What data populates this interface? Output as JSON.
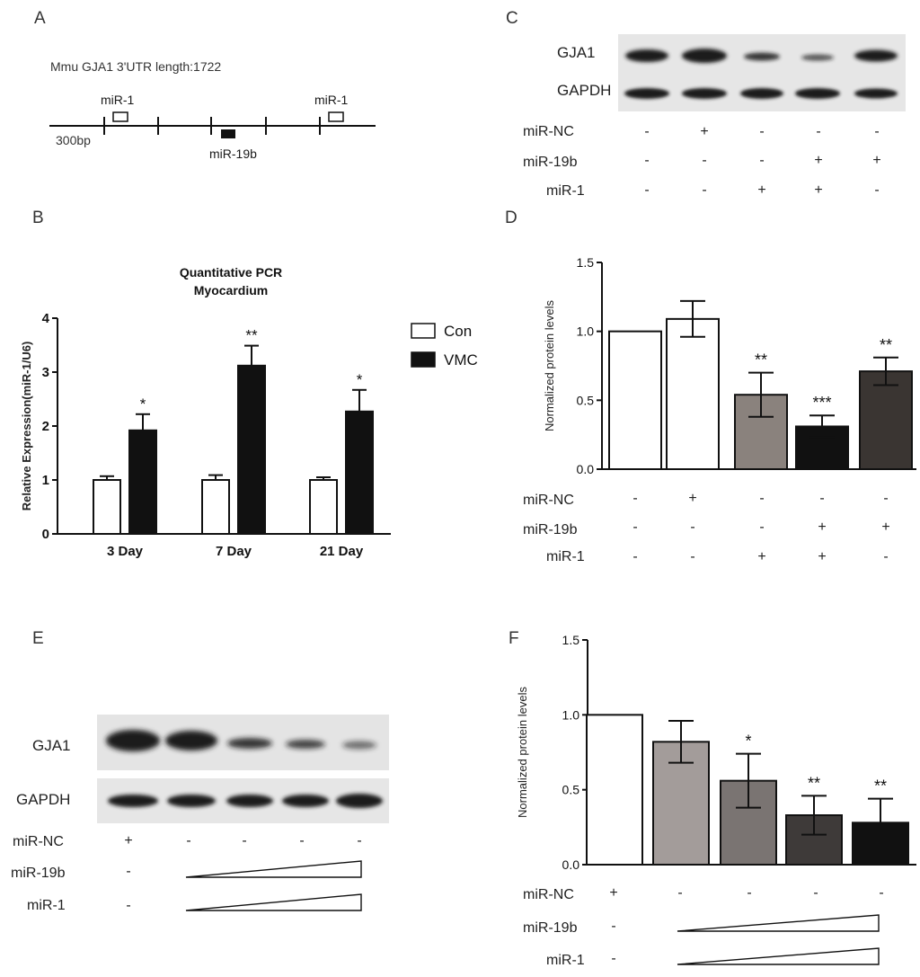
{
  "panel_labels": {
    "a": "A",
    "b": "B",
    "c": "C",
    "d": "D",
    "e": "E",
    "f": "F"
  },
  "panel_a": {
    "title": "Mmu  GJA1 3'UTR length:1722",
    "scale": "300bp",
    "sites": [
      "miR-1",
      "miR-19b",
      "miR-1"
    ]
  },
  "blots": {
    "gja1": "GJA1",
    "gapdh": "GAPDH"
  },
  "conditions": {
    "nc": "miR-NC",
    "b19": "miR-19b",
    "m1": "miR-1"
  },
  "panel_c_signs": {
    "nc": [
      "-",
      "+",
      "-",
      "-",
      "-"
    ],
    "b19": [
      "-",
      "-",
      "-",
      "+",
      "+"
    ],
    "m1": [
      "-",
      "-",
      "+",
      "+",
      "-"
    ]
  },
  "panel_e_signs": {
    "nc": [
      "+",
      "-",
      "-",
      "-",
      "-"
    ],
    "b19": [
      "-"
    ],
    "m1": [
      "-"
    ]
  },
  "chart_data": [
    {
      "panel": "B",
      "type": "bar",
      "title": [
        "Quantitative PCR",
        "Myocardium"
      ],
      "ylabel": "Relative Expression(miR-1/U6)",
      "xlabel": "",
      "categories": [
        "3 Day",
        "7 Day",
        "21 Day"
      ],
      "ylim": [
        0,
        4
      ],
      "yticks": [
        "0",
        "1",
        "2",
        "3",
        "4"
      ],
      "legend_position": "right",
      "series": [
        {
          "name": "Con",
          "color": "#ffffff",
          "values": [
            1.0,
            1.0,
            1.0
          ],
          "errors": [
            0.07,
            0.09,
            0.05
          ]
        },
        {
          "name": "VMC",
          "color": "#111111",
          "values": [
            1.92,
            3.12,
            2.27
          ],
          "errors": [
            0.3,
            0.37,
            0.4
          ]
        }
      ],
      "significance": [
        "*",
        "**",
        "*"
      ]
    },
    {
      "panel": "D",
      "type": "bar",
      "ylabel": "Normalized protein levels",
      "ylim": [
        0,
        1.5
      ],
      "yticks": [
        "0.0",
        "0.5",
        "1.0",
        "1.5"
      ],
      "values": [
        1.0,
        1.09,
        0.54,
        0.31,
        0.71
      ],
      "errors": [
        0,
        0.13,
        0.16,
        0.08,
        0.1
      ],
      "colors": [
        "#ffffff",
        "#ffffff",
        "#8a827d",
        "#111111",
        "#3a3532"
      ],
      "significance": [
        "",
        "",
        "**",
        "***",
        "**"
      ]
    },
    {
      "panel": "F",
      "type": "bar",
      "ylabel": "Normalized protein levels",
      "ylim": [
        0,
        1.5
      ],
      "yticks": [
        "0.0",
        "0.5",
        "1.0",
        "1.5"
      ],
      "values": [
        1.0,
        0.82,
        0.56,
        0.33,
        0.28
      ],
      "errors": [
        0,
        0.14,
        0.18,
        0.13,
        0.16
      ],
      "colors": [
        "#ffffff",
        "#a39c9a",
        "#7a7472",
        "#3e3a39",
        "#111111"
      ],
      "significance": [
        "",
        "",
        "*",
        "**",
        "**"
      ]
    }
  ]
}
